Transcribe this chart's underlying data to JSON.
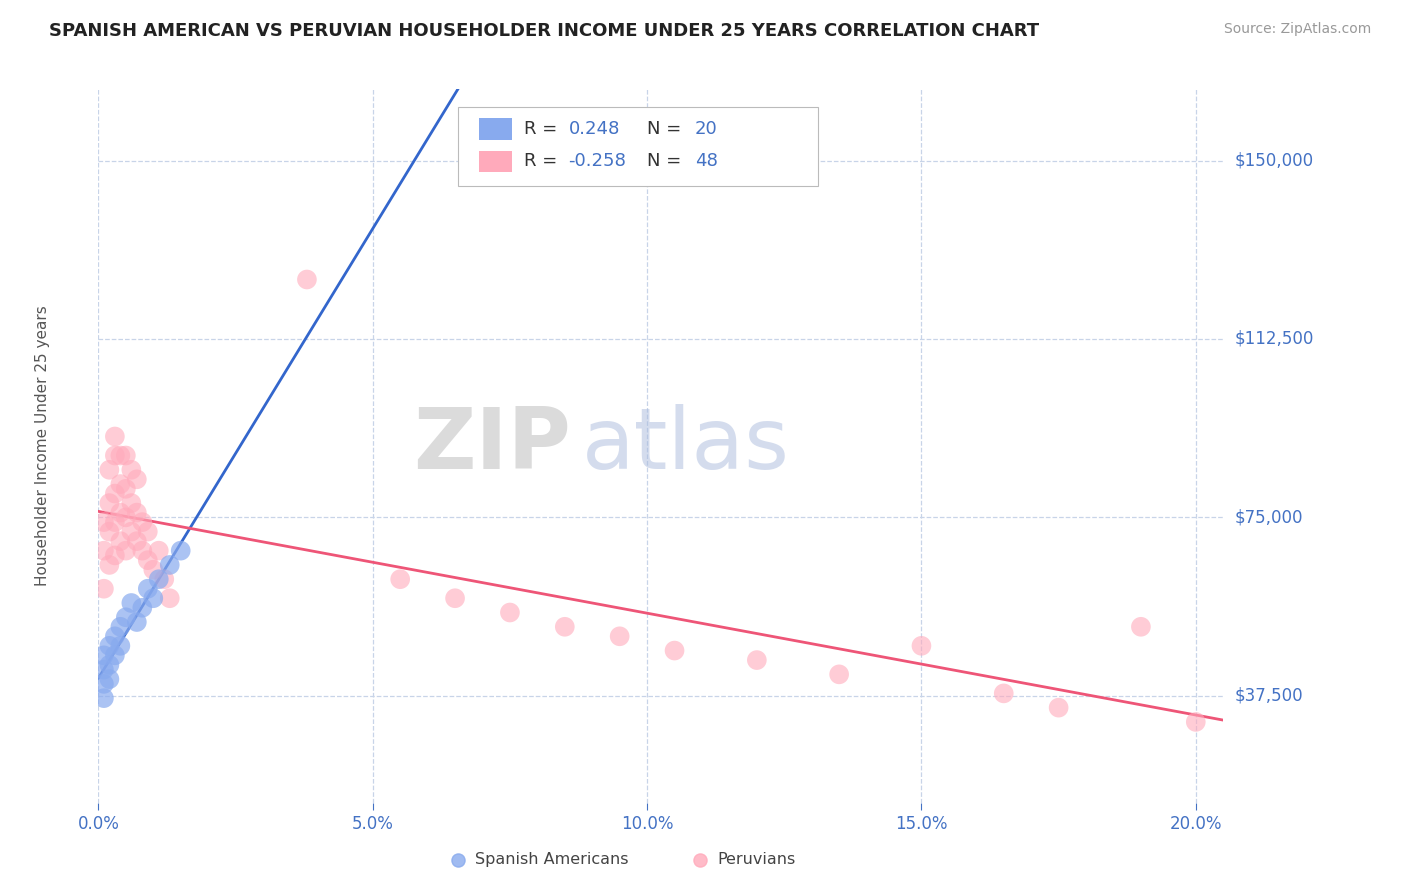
{
  "title": "SPANISH AMERICAN VS PERUVIAN HOUSEHOLDER INCOME UNDER 25 YEARS CORRELATION CHART",
  "source": "Source: ZipAtlas.com",
  "ylabel": "Householder Income Under 25 years",
  "xlim": [
    0.0,
    0.205
  ],
  "ylim": [
    15000,
    165000
  ],
  "ytick_vals": [
    37500,
    75000,
    112500,
    150000
  ],
  "ytick_labels": [
    "$37,500",
    "$75,000",
    "$112,500",
    "$150,000"
  ],
  "xtick_vals": [
    0.0,
    0.05,
    0.1,
    0.15,
    0.2
  ],
  "xtick_labels": [
    "0.0%",
    "5.0%",
    "10.0%",
    "15.0%",
    "20.0%"
  ],
  "bg_color": "#ffffff",
  "grid_color": "#c8d4e8",
  "title_color": "#222222",
  "axis_tick_color": "#4472c4",
  "source_color": "#999999",
  "blue_dot_color": "#88aaee",
  "pink_dot_color": "#ffaabb",
  "blue_line_color": "#3366cc",
  "pink_line_color": "#ee5577",
  "r_color": "#4472c4",
  "n_color": "#4472c4",
  "blue_R": "0.248",
  "blue_N": "20",
  "pink_R": "-0.258",
  "pink_N": "48",
  "legend_label_blue": "Spanish Americans",
  "legend_label_pink": "Peruvians",
  "watermark_zip": "ZIP",
  "watermark_atlas": "atlas",
  "blue_x": [
    0.001,
    0.001,
    0.001,
    0.001,
    0.002,
    0.002,
    0.002,
    0.003,
    0.003,
    0.004,
    0.004,
    0.005,
    0.006,
    0.007,
    0.008,
    0.009,
    0.01,
    0.011,
    0.013,
    0.015
  ],
  "blue_y": [
    46000,
    43000,
    40000,
    37000,
    48000,
    44000,
    41000,
    50000,
    46000,
    52000,
    48000,
    54000,
    57000,
    53000,
    56000,
    60000,
    58000,
    62000,
    65000,
    68000
  ],
  "pink_x": [
    0.001,
    0.001,
    0.001,
    0.002,
    0.002,
    0.002,
    0.002,
    0.003,
    0.003,
    0.003,
    0.003,
    0.003,
    0.004,
    0.004,
    0.004,
    0.004,
    0.005,
    0.005,
    0.005,
    0.005,
    0.006,
    0.006,
    0.006,
    0.007,
    0.007,
    0.007,
    0.008,
    0.008,
    0.009,
    0.009,
    0.01,
    0.011,
    0.012,
    0.013,
    0.038,
    0.055,
    0.065,
    0.075,
    0.085,
    0.095,
    0.105,
    0.12,
    0.135,
    0.15,
    0.165,
    0.175,
    0.19,
    0.2
  ],
  "pink_y": [
    60000,
    68000,
    74000,
    65000,
    72000,
    78000,
    85000,
    67000,
    74000,
    80000,
    88000,
    92000,
    70000,
    76000,
    82000,
    88000,
    68000,
    75000,
    81000,
    88000,
    72000,
    78000,
    85000,
    70000,
    76000,
    83000,
    68000,
    74000,
    66000,
    72000,
    64000,
    68000,
    62000,
    58000,
    125000,
    62000,
    58000,
    55000,
    52000,
    50000,
    47000,
    45000,
    42000,
    48000,
    38000,
    35000,
    52000,
    32000
  ]
}
